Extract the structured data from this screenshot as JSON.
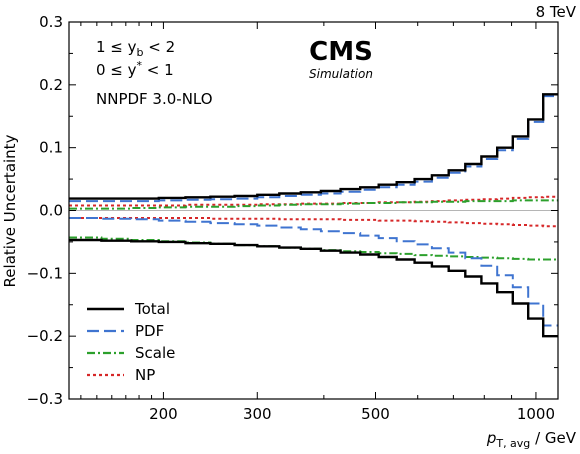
{
  "energy_label": "8 TeV",
  "experiment": "CMS",
  "experiment_sub": "Simulation",
  "region": {
    "line1": "1 ≤ y",
    "line1_sub": "b",
    "line1_end": " < 2",
    "line2": "0 ≤ y",
    "line2_sup": "*",
    "line2_end": " < 1"
  },
  "pdf_set": "NNPDF 3.0-NLO",
  "chart_data": {
    "type": "line",
    "step": true,
    "xlabel_main": "p",
    "xlabel_sub": "T, avg",
    "xlabel_unit": " / GeV",
    "ylabel": "Relative Uncertainty",
    "xscale": "log",
    "xlim": [
      133,
      1100
    ],
    "ylim": [
      -0.3,
      0.3
    ],
    "xticks": [
      200,
      300,
      500,
      1000
    ],
    "xtick_labels": [
      "200",
      "300",
      "500",
      "1000"
    ],
    "yticks": [
      -0.3,
      -0.2,
      -0.1,
      0.0,
      0.1,
      0.2,
      0.3
    ],
    "ytick_labels": [
      "−0.3",
      "−0.2",
      "−0.1",
      "0.0",
      "0.1",
      "0.2",
      "0.3"
    ],
    "zero_line": true,
    "legend_position": "bottom-left",
    "bin_edges": [
      133,
      153,
      174,
      196,
      220,
      245,
      272,
      300,
      330,
      362,
      395,
      430,
      468,
      507,
      548,
      592,
      638,
      686,
      737,
      790,
      846,
      905,
      967,
      1032,
      1100
    ],
    "series": [
      {
        "name": "Total",
        "color": "#000000",
        "style": "solid",
        "up": [
          0.019,
          0.019,
          0.019,
          0.02,
          0.021,
          0.022,
          0.023,
          0.025,
          0.027,
          0.029,
          0.031,
          0.034,
          0.037,
          0.041,
          0.045,
          0.05,
          0.056,
          0.064,
          0.074,
          0.086,
          0.1,
          0.118,
          0.145,
          0.185
        ],
        "down": [
          -0.047,
          -0.048,
          -0.049,
          -0.05,
          -0.052,
          -0.053,
          -0.055,
          -0.057,
          -0.059,
          -0.061,
          -0.064,
          -0.067,
          -0.07,
          -0.074,
          -0.078,
          -0.083,
          -0.089,
          -0.096,
          -0.105,
          -0.116,
          -0.13,
          -0.148,
          -0.172,
          -0.2
        ]
      },
      {
        "name": "PDF",
        "color": "#3f74d0",
        "style": "dashed",
        "up": [
          0.015,
          0.015,
          0.015,
          0.016,
          0.017,
          0.018,
          0.019,
          0.021,
          0.023,
          0.025,
          0.027,
          0.03,
          0.033,
          0.037,
          0.041,
          0.046,
          0.052,
          0.06,
          0.07,
          0.082,
          0.096,
          0.114,
          0.141,
          0.182
        ],
        "down": [
          -0.012,
          -0.013,
          -0.014,
          -0.016,
          -0.018,
          -0.02,
          -0.022,
          -0.024,
          -0.027,
          -0.03,
          -0.033,
          -0.036,
          -0.04,
          -0.044,
          -0.049,
          -0.054,
          -0.06,
          -0.067,
          -0.076,
          -0.088,
          -0.103,
          -0.122,
          -0.148,
          -0.183
        ]
      },
      {
        "name": "Scale",
        "color": "#2ca02c",
        "style": "dashdot",
        "up": [
          0.003,
          0.003,
          0.004,
          0.005,
          0.006,
          0.006,
          0.007,
          0.008,
          0.009,
          0.01,
          0.01,
          0.011,
          0.012,
          0.012,
          0.013,
          0.013,
          0.014,
          0.014,
          0.015,
          0.015,
          0.015,
          0.016,
          0.016,
          0.016
        ],
        "down": [
          -0.043,
          -0.045,
          -0.047,
          -0.049,
          -0.051,
          -0.053,
          -0.055,
          -0.057,
          -0.059,
          -0.061,
          -0.063,
          -0.065,
          -0.066,
          -0.068,
          -0.069,
          -0.071,
          -0.072,
          -0.073,
          -0.074,
          -0.075,
          -0.076,
          -0.077,
          -0.078,
          -0.078
        ]
      },
      {
        "name": "NP",
        "color": "#d62728",
        "style": "dotted",
        "up": [
          0.008,
          0.008,
          0.008,
          0.008,
          0.009,
          0.009,
          0.009,
          0.01,
          0.01,
          0.011,
          0.011,
          0.012,
          0.012,
          0.013,
          0.013,
          0.014,
          0.015,
          0.016,
          0.017,
          0.018,
          0.019,
          0.02,
          0.021,
          0.022
        ],
        "down": [
          -0.012,
          -0.012,
          -0.012,
          -0.012,
          -0.012,
          -0.013,
          -0.013,
          -0.013,
          -0.014,
          -0.014,
          -0.014,
          -0.015,
          -0.015,
          -0.016,
          -0.016,
          -0.017,
          -0.018,
          -0.019,
          -0.02,
          -0.021,
          -0.022,
          -0.023,
          -0.024,
          -0.025
        ]
      }
    ]
  }
}
